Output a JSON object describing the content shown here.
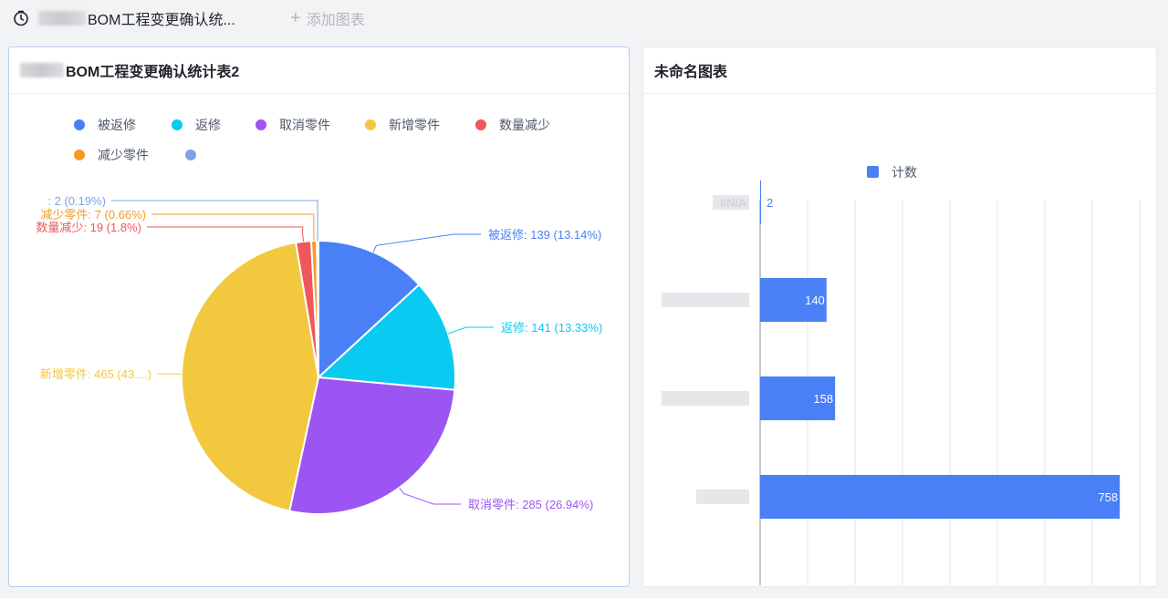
{
  "topbar": {
    "tab_title": "BOM工程变更确认统...",
    "add_chart_label": "添加图表"
  },
  "left_panel": {
    "title": "BOM工程变更确认统计表2"
  },
  "right_panel": {
    "title": "未命名图表"
  },
  "chart_data": [
    {
      "type": "pie",
      "legend_position": "top-left",
      "slices": [
        {
          "name": "被返修",
          "value": 139,
          "percent": "13.14%",
          "color": "#4a80f5"
        },
        {
          "name": "返修",
          "value": 141,
          "percent": "13.33%",
          "color": "#09cbf1"
        },
        {
          "name": "取消零件",
          "value": 285,
          "percent": "26.94%",
          "color": "#9c55f3"
        },
        {
          "name": "新增零件",
          "value": 465,
          "percent": "43....",
          "color": "#f2c83f"
        },
        {
          "name": "数量减少",
          "value": 19,
          "percent": "1.8%",
          "color": "#f0575a"
        },
        {
          "name": "减少零件",
          "value": 7,
          "percent": "0.66%",
          "color": "#f59b25"
        },
        {
          "name": "",
          "value": 2,
          "percent": "0.19%",
          "color": "#7ea2e8"
        }
      ]
    },
    {
      "type": "bar",
      "orientation": "horizontal",
      "legend": [
        "计数"
      ],
      "legend_position": "top",
      "series": [
        {
          "name": "计数",
          "values": [
            2,
            140,
            158,
            758
          ],
          "color": "#4a80f5"
        }
      ],
      "categories": [
        "#N/A",
        "",
        "",
        ""
      ],
      "xlim": [
        0,
        800
      ],
      "xticks": [
        0,
        100,
        200,
        300,
        400,
        500,
        600,
        700,
        800
      ],
      "grid": true
    }
  ]
}
